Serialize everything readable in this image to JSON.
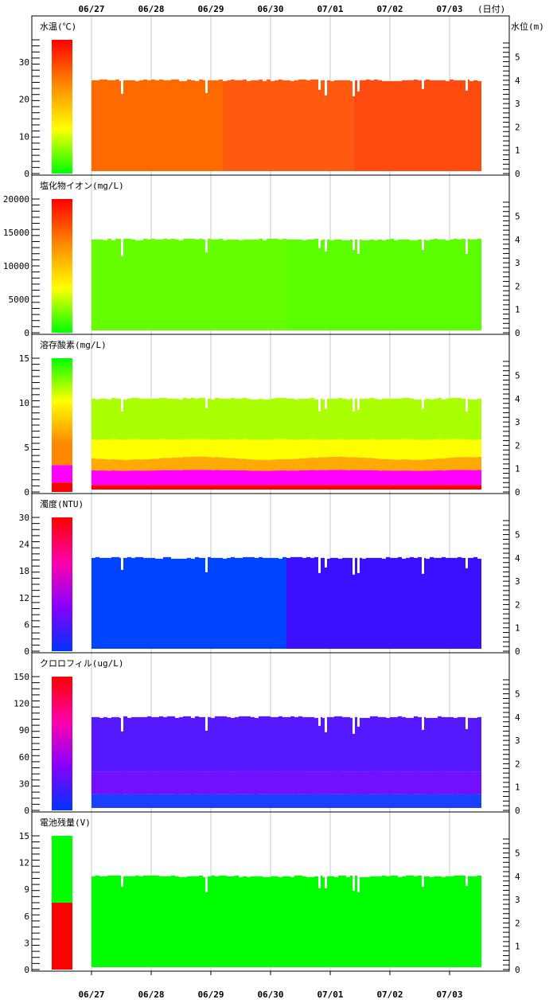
{
  "chart_data": {
    "type": "heatmap",
    "top_axis_dates": [
      "06/27",
      "06/28",
      "06/29",
      "06/30",
      "07/01",
      "07/02",
      "07/03"
    ],
    "bottom_axis_dates": [
      "06/27",
      "06/28",
      "06/29",
      "06/30",
      "07/01",
      "07/02",
      "07/03"
    ],
    "date_unit_label": "(日付)",
    "right_axis_label": "水位(m)",
    "right_axis_ticks": [
      "0",
      "1",
      "2",
      "3",
      "4",
      "5"
    ],
    "water_level_m": 4.0,
    "panels": [
      {
        "key": "temp",
        "label": "水温(℃)",
        "ticks": [
          "0",
          "10",
          "20",
          "30"
        ],
        "range": [
          0,
          36
        ],
        "colorbar": [
          "#ff0000",
          "#ff8800",
          "#ffff00",
          "#00ff00"
        ],
        "field_colors": [
          "#ff6a00",
          "#ff5a10",
          "#ff4a10"
        ]
      },
      {
        "key": "chloride",
        "label": "塩化物イオン(mg/L)",
        "ticks": [
          "0",
          "5000",
          "10000",
          "15000",
          "20000"
        ],
        "range": [
          0,
          20000
        ],
        "colorbar": [
          "#ff0000",
          "#ff8800",
          "#ffff00",
          "#00ff00"
        ],
        "field_colors": [
          "#66ff00",
          "#5cff00"
        ]
      },
      {
        "key": "do",
        "label": "溶存酸素(mg/L)",
        "ticks": [
          "0",
          "5",
          "10",
          "15"
        ],
        "range": [
          0,
          15
        ],
        "colorbar": [
          "#ff0000",
          "#ff00ff",
          "#ff8800",
          "#ffff00",
          "#00ff00"
        ],
        "field_colors": [
          "#aaff00",
          "#ffff00",
          "#ffaa00",
          "#ff00ff",
          "#ff0000"
        ]
      },
      {
        "key": "turbidity",
        "label": "濁度(NTU)",
        "ticks": [
          "0",
          "6",
          "12",
          "18",
          "24",
          "30"
        ],
        "range": [
          0,
          30
        ],
        "colorbar": [
          "#ff0000",
          "#ff00aa",
          "#8800ff",
          "#0033ff"
        ],
        "field_colors": [
          "#0044ff",
          "#3a10ff"
        ]
      },
      {
        "key": "chlorophyll",
        "label": "クロロフィル(ug/L)",
        "ticks": [
          "0",
          "30",
          "60",
          "90",
          "120",
          "150"
        ],
        "range": [
          0,
          150
        ],
        "colorbar": [
          "#ff0000",
          "#ff00aa",
          "#8800ff",
          "#0033ff"
        ],
        "field_colors": [
          "#5518ff",
          "#7010ff",
          "#1a40ff"
        ]
      },
      {
        "key": "battery",
        "label": "電池残量(V)",
        "ticks": [
          "0",
          "3",
          "6",
          "9",
          "12",
          "15"
        ],
        "range": [
          0,
          15
        ],
        "colorbar": [
          "#00ff00",
          "#ff0000"
        ],
        "field_colors": [
          "#00ff00"
        ]
      }
    ]
  }
}
